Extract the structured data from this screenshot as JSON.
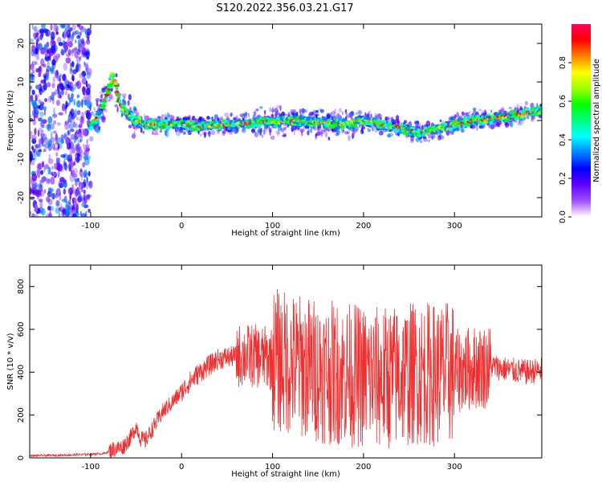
{
  "title": "S120.2022.356.03.21.G17",
  "chart_data": [
    {
      "type": "heatmap",
      "title": "S120.2022.356.03.21.G17",
      "xlabel": "Height of straight line (km)",
      "ylabel": "Frequency (Hz)",
      "xlim": [
        -167,
        396
      ],
      "ylim": [
        -25,
        25
      ],
      "xticks": [
        -100,
        0,
        100,
        200,
        300
      ],
      "yticks": [
        -20,
        -10,
        0,
        10,
        20
      ],
      "colorbar": {
        "label": "Normalized spectral amplitude",
        "range": [
          0,
          1
        ],
        "ticks": [
          "0.0",
          "0.2",
          "0.4",
          "0.6",
          "0.8"
        ],
        "colors": [
          "#ffffff",
          "#a050ff",
          "#6000ff",
          "#0000ff",
          "#0080ff",
          "#00ffff",
          "#00ff80",
          "#00ff00",
          "#a0ff00",
          "#ffff00",
          "#ff8000",
          "#ff0000",
          "#ff0060"
        ]
      },
      "ridge": {
        "x": [
          -100,
          -95,
          -90,
          -85,
          -80,
          -75,
          -70,
          -65,
          -60,
          -55,
          -50,
          -40,
          -20,
          0,
          20,
          50,
          80,
          100,
          120,
          150,
          180,
          200,
          220,
          240,
          260,
          280,
          300,
          320,
          340,
          360,
          380,
          396
        ],
        "y": [
          -1,
          0,
          2,
          5,
          8,
          12,
          6,
          3,
          2,
          1,
          0,
          -1,
          -1,
          -1,
          -1.5,
          -1,
          -0.5,
          -0.5,
          0,
          -0.5,
          -1,
          0,
          -1,
          -2,
          -3,
          -2.5,
          -1,
          0,
          0.5,
          1,
          2,
          2.5
        ]
      },
      "noise_region_x": [
        -167,
        -100
      ]
    },
    {
      "type": "line",
      "xlabel": "Height of straight line (km)",
      "ylabel": "SNR (10 * v/v)",
      "xlim": [
        -167,
        396
      ],
      "ylim": [
        0,
        900
      ],
      "xticks": [
        -100,
        0,
        100,
        200,
        300
      ],
      "yticks": [
        0,
        200,
        400,
        600,
        800
      ],
      "line_color": "#f03030",
      "series": [
        {
          "x": [
            -167,
            -140,
            -110,
            -85,
            -75,
            -65,
            -55,
            -50,
            -45,
            -40,
            -30,
            -20,
            -10,
            0,
            10,
            20,
            30,
            40,
            50,
            70,
            90,
            100,
            120,
            140,
            160,
            180,
            200,
            220,
            240,
            260,
            280,
            300,
            320,
            340,
            360,
            380,
            396
          ],
          "y": [
            10,
            12,
            15,
            20,
            40,
            50,
            100,
            150,
            90,
            80,
            150,
            220,
            260,
            310,
            360,
            400,
            430,
            460,
            470,
            480,
            470,
            460,
            440,
            420,
            400,
            390,
            380,
            370,
            380,
            400,
            390,
            400,
            420,
            430,
            410,
            400,
            410
          ]
        }
      ]
    }
  ]
}
